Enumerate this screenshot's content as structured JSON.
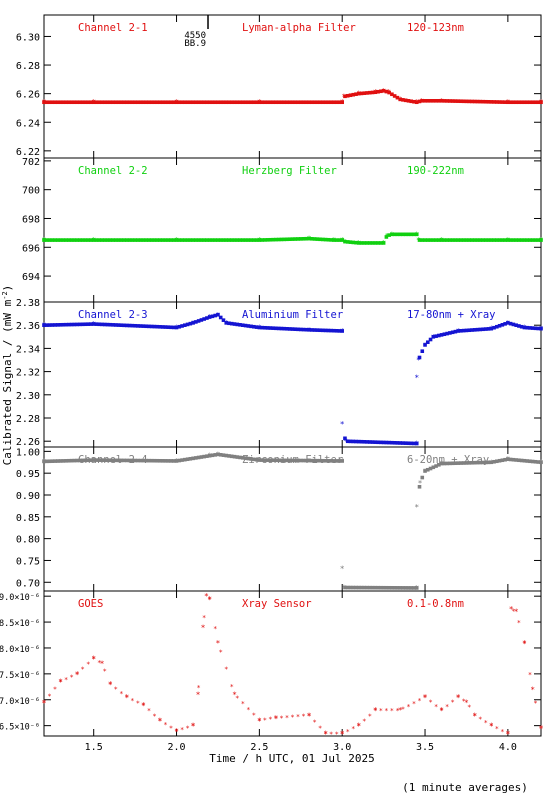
{
  "chart_data": [
    {
      "type": "scatter",
      "labels": [
        "Channel 2-1",
        "Lyman-alpha Filter",
        "120-123nm"
      ],
      "color": "#e01010",
      "ylim": [
        6.215,
        6.315
      ],
      "yticks": [
        6.22,
        6.24,
        6.26,
        6.28,
        6.3
      ],
      "ytick_labels": [
        "6.22",
        "6.24",
        "6.26",
        "6.28",
        "6.30"
      ],
      "annotation": {
        "text": [
          "4550",
          "BB.9"
        ],
        "x": 2.19
      },
      "x": [
        1.2,
        1.5,
        2.0,
        2.5,
        3.0,
        3.01,
        3.1,
        3.2,
        3.25,
        3.28,
        3.35,
        3.45,
        3.48,
        3.6,
        4.0,
        4.2
      ],
      "y": [
        6.254,
        6.254,
        6.254,
        6.254,
        6.254,
        6.258,
        6.26,
        6.261,
        6.262,
        6.261,
        6.256,
        6.254,
        6.255,
        6.255,
        6.254,
        6.254
      ]
    },
    {
      "type": "scatter",
      "labels": [
        "Channel 2-2",
        "Herzberg Filter",
        "190-222nm"
      ],
      "color": "#10d010",
      "ylim": [
        692.2,
        702.2
      ],
      "yticks": [
        694,
        696,
        698,
        700,
        702
      ],
      "ytick_labels": [
        "694",
        "696",
        "698",
        "700",
        "702"
      ],
      "x": [
        1.2,
        1.5,
        2.0,
        2.5,
        2.8,
        2.95,
        3.0,
        3.01,
        3.1,
        3.25,
        3.27,
        3.3,
        3.45,
        3.46,
        3.6,
        4.0,
        4.2
      ],
      "y": [
        696.5,
        696.5,
        696.5,
        696.5,
        696.6,
        696.5,
        696.5,
        696.4,
        696.3,
        696.3,
        696.8,
        696.9,
        696.9,
        696.5,
        696.5,
        696.5,
        696.5
      ]
    },
    {
      "type": "scatter",
      "labels": [
        "Channel 2-3",
        "Aluminium Filter",
        "17-80nm + Xray"
      ],
      "color": "#1414d2",
      "ylim": [
        2.255,
        2.38
      ],
      "yticks": [
        2.26,
        2.28,
        2.3,
        2.32,
        2.34,
        2.36,
        2.38
      ],
      "ytick_labels": [
        "2.26",
        "2.28",
        "2.30",
        "2.32",
        "2.34",
        "2.36",
        "2.38"
      ],
      "x": [
        1.2,
        1.5,
        2.0,
        2.1,
        2.2,
        2.25,
        2.3,
        2.5,
        2.8,
        3.0,
        3.0,
        3.02,
        3.45,
        3.45,
        3.46,
        3.5,
        3.55,
        3.7,
        3.9,
        4.0,
        4.1,
        4.2
      ],
      "y": [
        2.36,
        2.361,
        2.358,
        2.362,
        2.367,
        2.369,
        2.362,
        2.358,
        2.356,
        2.355,
        2.275,
        2.26,
        2.258,
        2.315,
        2.33,
        2.343,
        2.35,
        2.355,
        2.357,
        2.362,
        2.358,
        2.357
      ]
    },
    {
      "type": "scatter",
      "labels": [
        "Channel 2-4",
        "Zirconium Filter",
        "6-20nm + Xray"
      ],
      "color": "#808080",
      "ylim": [
        0.68,
        1.01
      ],
      "yticks": [
        0.7,
        0.75,
        0.8,
        0.85,
        0.9,
        0.95,
        1.0
      ],
      "ytick_labels": [
        "0.70",
        "0.75",
        "0.80",
        "0.85",
        "0.90",
        "0.95",
        "1.00"
      ],
      "x": [
        1.2,
        1.5,
        2.0,
        2.2,
        2.25,
        2.5,
        3.0,
        3.0,
        3.01,
        3.45,
        3.45,
        3.47,
        3.5,
        3.6,
        3.9,
        4.0,
        4.2
      ],
      "y": [
        0.977,
        0.98,
        0.978,
        0.99,
        0.993,
        0.98,
        0.978,
        0.732,
        0.688,
        0.687,
        0.873,
        0.928,
        0.955,
        0.972,
        0.975,
        0.982,
        0.975
      ]
    },
    {
      "type": "scatter",
      "labels": [
        "GOES",
        "Xray Sensor",
        "0.1-0.8nm"
      ],
      "color": "#e01010",
      "ylim": [
        6.3e-06,
        9.1e-06
      ],
      "yticks": [
        6.5e-06,
        7e-06,
        7.5e-06,
        8e-06,
        8.5e-06,
        9e-06
      ],
      "ytick_labels": [
        "6.5×10⁻⁶",
        "7.0×10⁻⁶",
        "7.5×10⁻⁶",
        "8.0×10⁻⁶",
        "8.5×10⁻⁶",
        "9.0×10⁻⁶"
      ],
      "x": [
        1.2,
        1.3,
        1.4,
        1.5,
        1.55,
        1.6,
        1.7,
        1.8,
        1.9,
        2.0,
        2.1,
        2.13,
        2.16,
        2.18,
        2.2,
        2.25,
        2.35,
        2.5,
        2.6,
        2.8,
        2.9,
        3.0,
        3.1,
        3.2,
        3.35,
        3.5,
        3.6,
        3.7,
        3.75,
        3.8,
        3.9,
        4.0,
        4.02,
        4.05,
        4.1,
        4.15,
        4.2
      ],
      "y": [
        6.95e-06,
        7.35e-06,
        7.5e-06,
        7.8e-06,
        7.7e-06,
        7.3e-06,
        7.05e-06,
        6.9e-06,
        6.6e-06,
        6.4e-06,
        6.5e-06,
        7.1e-06,
        8.4e-06,
        9e-06,
        8.95e-06,
        8.1e-06,
        7.1e-06,
        6.6e-06,
        6.65e-06,
        6.7e-06,
        6.35e-06,
        6.35e-06,
        6.5e-06,
        6.8e-06,
        6.8e-06,
        7.05e-06,
        6.8e-06,
        7.05e-06,
        6.95e-06,
        6.7e-06,
        6.5e-06,
        6.35e-06,
        8.75e-06,
        8.7e-06,
        8.1e-06,
        7.2e-06,
        6.45e-06
      ]
    }
  ],
  "x_axis": {
    "xlim": [
      1.2,
      4.2
    ],
    "ticks": [
      1.5,
      2.0,
      2.5,
      3.0,
      3.5,
      4.0
    ],
    "tick_labels": [
      "1.5",
      "2.0",
      "2.5",
      "3.0",
      "3.5",
      "4.0"
    ],
    "label": "Time / h UTC, 01 Jul 2025"
  },
  "y_axis_label": "Calibrated Signal / (mW m",
  "y_axis_label_sup": "-2",
  "y_axis_label_end": ")",
  "footnote": "(1 minute averages)"
}
